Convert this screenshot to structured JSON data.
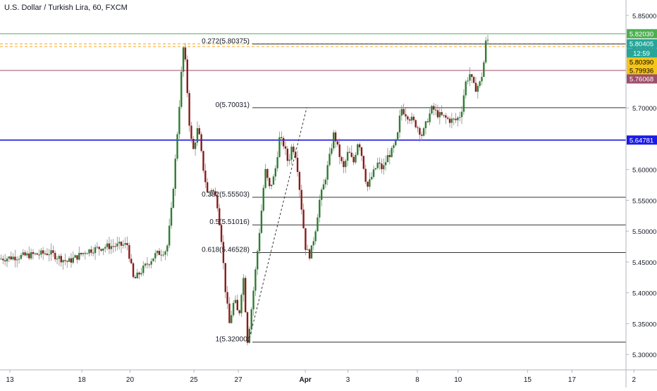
{
  "title": "U.S. Dollar / Turkish Lira, 60, FXCM",
  "chart_data": {
    "type": "candlestick",
    "title": "U.S. Dollar / Turkish Lira, 60, FXCM",
    "ylim": [
      5.275,
      5.875
    ],
    "x_ticks": [
      {
        "label": "13",
        "pos": 0.0
      },
      {
        "label": "18",
        "pos": 0.115
      },
      {
        "label": "20",
        "pos": 0.192
      },
      {
        "label": "25",
        "pos": 0.294
      },
      {
        "label": "27",
        "pos": 0.365
      },
      {
        "label": "Apr",
        "pos": 0.472
      },
      {
        "label": "3",
        "pos": 0.54
      },
      {
        "label": "8",
        "pos": 0.651
      },
      {
        "label": "10",
        "pos": 0.716
      },
      {
        "label": "15",
        "pos": 0.827
      },
      {
        "label": "17",
        "pos": 0.898
      },
      {
        "label": "2",
        "pos": 0.997
      }
    ],
    "y_ticks": [
      5.3,
      5.35,
      5.4,
      5.45,
      5.5,
      5.55,
      5.6,
      5.65,
      5.7,
      5.75,
      5.8,
      5.85
    ],
    "y_tick_labels": [
      "5.30000",
      "5.35000",
      "5.40000",
      "5.45000",
      "5.50000",
      "5.55000",
      "5.60000",
      "5.65000",
      "5.70000",
      "5.75000",
      "5.80000",
      "5.85000"
    ],
    "fib_levels": [
      {
        "label": "0.272(5.80375)",
        "value": 5.80375
      },
      {
        "label": "0(5.70031)",
        "value": 5.70031
      },
      {
        "label": "0.382(5.55503)",
        "value": 5.55503
      },
      {
        "label": "0.5(5.51016)",
        "value": 5.51016
      },
      {
        "label": "0.618(5.46528)",
        "value": 5.46528
      },
      {
        "label": "1(5.32000)",
        "value": 5.32
      }
    ],
    "horizontal_lines": [
      {
        "value": 5.8203,
        "color": "#4caf50",
        "style": "solid"
      },
      {
        "value": 5.8039,
        "color": "#f5a623",
        "style": "dashed"
      },
      {
        "value": 5.79936,
        "color": "#f5a623",
        "style": "dashed"
      },
      {
        "value": 5.76068,
        "color": "#9c4f6a",
        "style": "solid"
      },
      {
        "value": 5.64781,
        "color": "#1a1ae6",
        "style": "solid"
      }
    ],
    "price_tags": [
      {
        "label": "5.82030",
        "value": 5.8203,
        "bg": "#4caf50",
        "fg": "#ffffff"
      },
      {
        "label": "5.80405",
        "value": 5.80405,
        "bg": "#26a69a",
        "fg": "#ffffff"
      },
      {
        "label": "12:59",
        "value": 5.789,
        "bg": "#26a69a",
        "fg": "#ffffff"
      },
      {
        "label": "5.80390",
        "value": 5.7742,
        "bg": "#f5c518",
        "fg": "#000000"
      },
      {
        "label": "5.79936",
        "value": 5.7606,
        "bg": "#f5c518",
        "fg": "#000000"
      },
      {
        "label": "5.76068",
        "value": 5.747,
        "bg": "#9c4f6a",
        "fg": "#ffffff"
      },
      {
        "label": "5.64781",
        "value": 5.64781,
        "bg": "#1a1ae6",
        "fg": "#ffffff"
      }
    ],
    "price_path": [
      [
        0.0,
        5.455
      ],
      [
        0.04,
        5.46
      ],
      [
        0.08,
        5.465
      ],
      [
        0.11,
        5.45
      ],
      [
        0.14,
        5.468
      ],
      [
        0.17,
        5.475
      ],
      [
        0.205,
        5.478
      ],
      [
        0.215,
        5.42
      ],
      [
        0.235,
        5.445
      ],
      [
        0.25,
        5.462
      ],
      [
        0.268,
        5.47
      ],
      [
        0.275,
        5.53
      ],
      [
        0.282,
        5.62
      ],
      [
        0.289,
        5.72
      ],
      [
        0.294,
        5.8
      ],
      [
        0.298,
        5.77
      ],
      [
        0.305,
        5.66
      ],
      [
        0.31,
        5.63
      ],
      [
        0.318,
        5.67
      ],
      [
        0.325,
        5.61
      ],
      [
        0.333,
        5.56
      ],
      [
        0.34,
        5.57
      ],
      [
        0.348,
        5.55
      ],
      [
        0.355,
        5.49
      ],
      [
        0.362,
        5.4
      ],
      [
        0.368,
        5.35
      ],
      [
        0.376,
        5.39
      ],
      [
        0.383,
        5.36
      ],
      [
        0.39,
        5.43
      ],
      [
        0.397,
        5.32
      ],
      [
        0.405,
        5.39
      ],
      [
        0.41,
        5.44
      ],
      [
        0.418,
        5.52
      ],
      [
        0.425,
        5.6
      ],
      [
        0.432,
        5.57
      ],
      [
        0.44,
        5.59
      ],
      [
        0.448,
        5.65
      ],
      [
        0.455,
        5.64
      ],
      [
        0.462,
        5.61
      ],
      [
        0.468,
        5.64
      ],
      [
        0.475,
        5.62
      ],
      [
        0.482,
        5.55
      ],
      [
        0.49,
        5.47
      ],
      [
        0.497,
        5.46
      ],
      [
        0.505,
        5.5
      ],
      [
        0.512,
        5.55
      ],
      [
        0.52,
        5.58
      ],
      [
        0.528,
        5.62
      ],
      [
        0.535,
        5.66
      ],
      [
        0.542,
        5.63
      ],
      [
        0.55,
        5.6
      ],
      [
        0.558,
        5.63
      ],
      [
        0.566,
        5.61
      ],
      [
        0.574,
        5.65
      ],
      [
        0.58,
        5.62
      ],
      [
        0.588,
        5.57
      ],
      [
        0.596,
        5.59
      ],
      [
        0.605,
        5.61
      ],
      [
        0.613,
        5.6
      ],
      [
        0.62,
        5.62
      ],
      [
        0.628,
        5.63
      ],
      [
        0.636,
        5.65
      ],
      [
        0.642,
        5.7
      ],
      [
        0.65,
        5.69
      ],
      [
        0.66,
        5.68
      ],
      [
        0.668,
        5.67
      ],
      [
        0.676,
        5.655
      ],
      [
        0.684,
        5.68
      ],
      [
        0.692,
        5.7
      ],
      [
        0.7,
        5.69
      ],
      [
        0.71,
        5.685
      ],
      [
        0.72,
        5.68
      ],
      [
        0.73,
        5.68
      ],
      [
        0.738,
        5.69
      ],
      [
        0.745,
        5.74
      ],
      [
        0.752,
        5.755
      ],
      [
        0.76,
        5.73
      ],
      [
        0.768,
        5.74
      ],
      [
        0.773,
        5.76
      ],
      [
        0.778,
        5.81
      ]
    ],
    "trend_line": {
      "from": [
        0.397,
        5.32
      ],
      "to": [
        0.49,
        5.70031
      ]
    }
  }
}
